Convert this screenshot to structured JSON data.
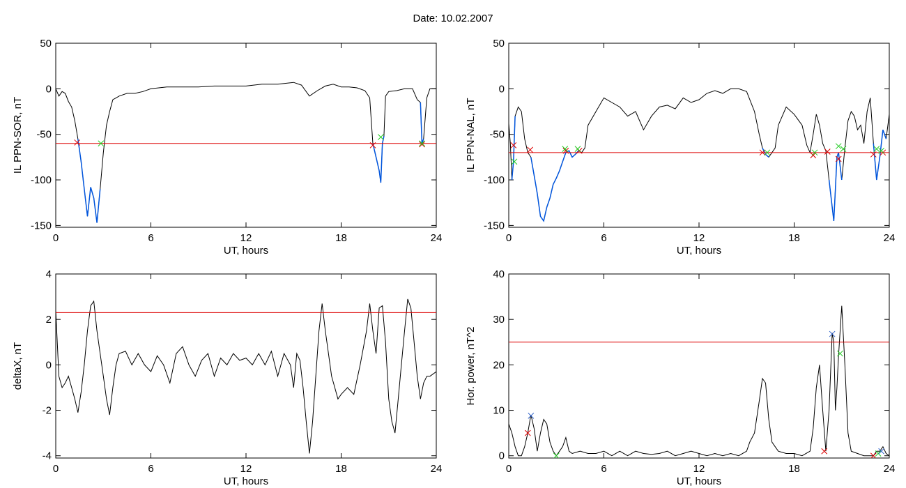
{
  "figure": {
    "title": "Date:  10.02.2007"
  },
  "colors": {
    "trace": "#000000",
    "event": "#0055dd",
    "threshold": "#dd0000",
    "marker_start": "#dd0000",
    "marker_end": "#22cc22",
    "marker_peak": "#3366cc"
  },
  "chart_data": [
    {
      "type": "line",
      "id": "sor",
      "xlabel": "UT, hours",
      "ylabel": "IL PPN-SOR, nT",
      "xlim": [
        0,
        24
      ],
      "ylim": [
        -152,
        50
      ],
      "xticks": [
        0,
        6,
        12,
        18,
        24
      ],
      "yticks": [
        50,
        0,
        -50,
        -100,
        -150
      ],
      "threshold": -60,
      "series": [
        {
          "x": [
            0,
            0.2,
            0.4,
            0.6,
            0.8,
            1.0,
            1.2,
            1.4,
            1.6,
            1.8,
            2.0,
            2.2,
            2.4,
            2.6,
            2.8,
            3.0,
            3.2,
            3.4,
            3.6,
            3.8,
            4.0,
            4.5,
            5.0,
            5.5,
            6.0,
            7.0,
            8.0,
            9.0,
            10.0,
            11.0,
            12.0,
            13.0,
            14.0,
            15.0,
            15.5,
            16.0,
            16.5,
            17.0,
            17.5,
            18.0,
            18.5,
            19.0,
            19.5,
            19.8,
            20.0,
            20.2,
            20.4,
            20.5,
            20.6,
            20.7,
            20.8,
            21.0,
            21.5,
            22.0,
            22.5,
            22.8,
            23.0,
            23.1,
            23.2,
            23.4,
            23.6,
            24.0
          ],
          "y": [
            0,
            -8,
            -3,
            -5,
            -14,
            -20,
            -35,
            -55,
            -80,
            -110,
            -140,
            -108,
            -120,
            -147,
            -110,
            -70,
            -40,
            -25,
            -12,
            -10,
            -8,
            -5,
            -5,
            -3,
            0,
            2,
            2,
            2,
            3,
            3,
            3,
            5,
            5,
            7,
            4,
            -8,
            -2,
            3,
            5,
            2,
            2,
            1,
            -2,
            -10,
            -60,
            -75,
            -90,
            -103,
            -60,
            -52,
            -8,
            -3,
            -2,
            0,
            0,
            -12,
            -15,
            -60,
            -55,
            -10,
            0,
            0
          ]
        }
      ],
      "events": [
        [
          1.3,
          2.9
        ],
        [
          20.0,
          20.7
        ],
        [
          23.0,
          23.2
        ]
      ],
      "markers_start": [
        {
          "x": 1.35,
          "y": -59
        },
        {
          "x": 20.0,
          "y": -62
        },
        {
          "x": 23.1,
          "y": -61
        }
      ],
      "markers_end": [
        {
          "x": 2.85,
          "y": -60
        },
        {
          "x": 20.5,
          "y": -53
        },
        {
          "x": 23.1,
          "y": -60
        }
      ],
      "markers_peak": []
    },
    {
      "type": "line",
      "id": "nal",
      "xlabel": "UT, hours",
      "ylabel": "IL PPN-NAL, nT",
      "xlim": [
        0,
        24
      ],
      "ylim": [
        -152,
        50
      ],
      "xticks": [
        0,
        6,
        12,
        18,
        24
      ],
      "yticks": [
        50,
        0,
        -50,
        -100,
        -150
      ],
      "threshold": -70,
      "series": [
        {
          "x": [
            0,
            0.1,
            0.2,
            0.3,
            0.4,
            0.6,
            0.8,
            1.0,
            1.2,
            1.4,
            1.6,
            1.8,
            2.0,
            2.2,
            2.4,
            2.6,
            2.8,
            3.0,
            3.2,
            3.4,
            3.6,
            3.8,
            4.0,
            4.2,
            4.4,
            4.6,
            4.8,
            5.0,
            5.5,
            6.0,
            6.5,
            7.0,
            7.5,
            8.0,
            8.5,
            9.0,
            9.5,
            10.0,
            10.5,
            11.0,
            11.5,
            12.0,
            12.5,
            13.0,
            13.5,
            14.0,
            14.5,
            15.0,
            15.5,
            15.8,
            16.0,
            16.2,
            16.4,
            16.6,
            16.8,
            17.0,
            17.5,
            18.0,
            18.5,
            18.8,
            19.0,
            19.2,
            19.4,
            19.6,
            19.8,
            20.0,
            20.2,
            20.4,
            20.5,
            20.6,
            20.7,
            20.8,
            21.0,
            21.2,
            21.4,
            21.6,
            21.8,
            22.0,
            22.2,
            22.4,
            22.6,
            22.8,
            23.0,
            23.2,
            23.4,
            23.6,
            23.8,
            24.0
          ],
          "y": [
            -38,
            -60,
            -100,
            -80,
            -30,
            -20,
            -25,
            -55,
            -70,
            -75,
            -95,
            -115,
            -140,
            -145,
            -130,
            -120,
            -105,
            -98,
            -90,
            -80,
            -70,
            -68,
            -75,
            -72,
            -68,
            -70,
            -65,
            -40,
            -25,
            -10,
            -15,
            -20,
            -30,
            -25,
            -45,
            -30,
            -20,
            -18,
            -22,
            -10,
            -15,
            -12,
            -5,
            -2,
            -5,
            0,
            0,
            -3,
            -25,
            -50,
            -65,
            -72,
            -75,
            -70,
            -65,
            -40,
            -20,
            -28,
            -40,
            -62,
            -70,
            -50,
            -28,
            -40,
            -60,
            -68,
            -100,
            -130,
            -145,
            -110,
            -75,
            -70,
            -100,
            -65,
            -35,
            -25,
            -30,
            -45,
            -40,
            -60,
            -25,
            -10,
            -60,
            -100,
            -75,
            -45,
            -55,
            -28
          ]
        }
      ],
      "events": [
        [
          0.2,
          0.4
        ],
        [
          1.3,
          4.5
        ],
        [
          15.9,
          16.4
        ],
        [
          19.1,
          19.3
        ],
        [
          20.1,
          21.0
        ],
        [
          22.9,
          23.9
        ]
      ],
      "markers_start": [
        {
          "x": 0.3,
          "y": -62
        },
        {
          "x": 1.35,
          "y": -67
        },
        {
          "x": 3.6,
          "y": -68
        },
        {
          "x": 4.45,
          "y": -68
        },
        {
          "x": 16.0,
          "y": -70
        },
        {
          "x": 19.2,
          "y": -73
        },
        {
          "x": 20.1,
          "y": -69
        },
        {
          "x": 20.8,
          "y": -77
        },
        {
          "x": 23.0,
          "y": -72
        },
        {
          "x": 23.6,
          "y": -70
        }
      ],
      "markers_end": [
        {
          "x": 0.35,
          "y": -80
        },
        {
          "x": 3.55,
          "y": -66
        },
        {
          "x": 4.35,
          "y": -66
        },
        {
          "x": 16.3,
          "y": -70
        },
        {
          "x": 19.3,
          "y": -70
        },
        {
          "x": 20.8,
          "y": -63
        },
        {
          "x": 21.1,
          "y": -66
        },
        {
          "x": 23.2,
          "y": -66
        },
        {
          "x": 23.5,
          "y": -68
        }
      ],
      "markers_peak": []
    },
    {
      "type": "line",
      "id": "deltax",
      "xlabel": "UT, hours",
      "ylabel": "deltaX, nT",
      "xlim": [
        0,
        24
      ],
      "ylim": [
        -4.1,
        4
      ],
      "xticks": [
        0,
        6,
        12,
        18,
        24
      ],
      "yticks": [
        4,
        2,
        0,
        -2,
        -4
      ],
      "threshold": 2.3,
      "series": [
        {
          "x": [
            0,
            0.2,
            0.4,
            0.6,
            0.8,
            1.0,
            1.2,
            1.4,
            1.6,
            1.8,
            2.0,
            2.2,
            2.4,
            2.6,
            2.8,
            3.0,
            3.2,
            3.4,
            3.6,
            3.8,
            4.0,
            4.4,
            4.8,
            5.2,
            5.6,
            6.0,
            6.4,
            6.8,
            7.2,
            7.6,
            8.0,
            8.4,
            8.8,
            9.2,
            9.6,
            10.0,
            10.4,
            10.8,
            11.2,
            11.6,
            12.0,
            12.4,
            12.8,
            13.2,
            13.6,
            14.0,
            14.4,
            14.8,
            15.0,
            15.2,
            15.4,
            15.6,
            15.8,
            16.0,
            16.2,
            16.4,
            16.6,
            16.8,
            17.0,
            17.2,
            17.4,
            17.6,
            17.8,
            18.0,
            18.4,
            18.8,
            19.2,
            19.6,
            19.8,
            20.0,
            20.2,
            20.4,
            20.6,
            20.8,
            21.0,
            21.2,
            21.4,
            21.6,
            21.8,
            22.0,
            22.2,
            22.4,
            22.6,
            22.8,
            23.0,
            23.2,
            23.4,
            23.6,
            24.0
          ],
          "y": [
            2.4,
            -0.5,
            -1.0,
            -0.8,
            -0.5,
            -1.0,
            -1.5,
            -2.1,
            -1.2,
            0.0,
            1.5,
            2.6,
            2.8,
            1.5,
            0.5,
            -0.5,
            -1.5,
            -2.2,
            -1.0,
            0.0,
            0.5,
            0.6,
            0.0,
            0.5,
            0.0,
            -0.3,
            0.4,
            0.0,
            -0.8,
            0.5,
            0.8,
            0.0,
            -0.5,
            0.2,
            0.5,
            -0.5,
            0.3,
            0.0,
            0.5,
            0.2,
            0.3,
            0.0,
            0.5,
            0.0,
            0.6,
            -0.5,
            0.5,
            0.0,
            -1.0,
            0.5,
            0.2,
            -1.0,
            -2.5,
            -3.9,
            -2.5,
            -0.5,
            1.5,
            2.7,
            1.5,
            0.5,
            -0.5,
            -1.0,
            -1.5,
            -1.3,
            -1.0,
            -1.3,
            0.0,
            1.5,
            2.7,
            1.5,
            0.5,
            2.5,
            2.6,
            1.0,
            -1.5,
            -2.5,
            -3.0,
            -1.5,
            0.0,
            1.5,
            2.9,
            2.5,
            1.0,
            -0.5,
            -1.5,
            -0.8,
            -0.5,
            -0.5,
            -0.3
          ]
        }
      ],
      "events": [],
      "markers_start": [],
      "markers_end": [],
      "markers_peak": []
    },
    {
      "type": "line",
      "id": "power",
      "xlabel": "UT, hours",
      "ylabel": "Hor. power, nT^2",
      "xlim": [
        0,
        24
      ],
      "ylim": [
        -0.5,
        40
      ],
      "xticks": [
        0,
        6,
        12,
        18,
        24
      ],
      "yticks": [
        40,
        30,
        20,
        10,
        0
      ],
      "threshold": 25,
      "series": [
        {
          "x": [
            0,
            0.2,
            0.4,
            0.6,
            0.8,
            1.0,
            1.2,
            1.4,
            1.6,
            1.8,
            2.0,
            2.2,
            2.4,
            2.6,
            2.8,
            3.0,
            3.2,
            3.4,
            3.6,
            3.8,
            4.0,
            4.5,
            5.0,
            5.5,
            6.0,
            6.5,
            7.0,
            7.5,
            8.0,
            8.5,
            9.0,
            9.5,
            10.0,
            10.5,
            11.0,
            11.5,
            12.0,
            12.5,
            13.0,
            13.5,
            14.0,
            14.5,
            15.0,
            15.2,
            15.5,
            15.8,
            16.0,
            16.2,
            16.4,
            16.6,
            16.8,
            17.0,
            17.5,
            18.0,
            18.5,
            19.0,
            19.2,
            19.4,
            19.6,
            19.8,
            20.0,
            20.2,
            20.4,
            20.5,
            20.6,
            20.7,
            20.8,
            21.0,
            21.2,
            21.4,
            21.6,
            22.0,
            22.4,
            22.8,
            23.0,
            23.2,
            23.4,
            23.6,
            23.8,
            24.0
          ],
          "y": [
            7,
            5,
            2,
            0,
            0,
            2,
            5,
            9,
            6,
            1,
            5,
            8,
            7,
            3,
            1,
            0,
            1,
            2,
            4,
            1,
            0.5,
            1,
            0.5,
            0.5,
            1,
            0,
            1,
            0,
            1,
            0.5,
            0.3,
            0.5,
            1,
            0,
            0.5,
            1,
            0.5,
            0,
            0.5,
            0,
            0.5,
            0,
            1,
            3,
            5,
            12,
            17,
            16,
            8,
            3,
            2,
            1,
            0.5,
            0.5,
            0,
            1,
            6,
            15,
            20,
            10,
            1,
            10,
            27,
            25,
            10,
            15,
            22,
            33,
            20,
            5,
            1,
            0.5,
            0,
            0,
            0,
            1,
            1,
            2,
            0.5,
            0
          ]
        }
      ],
      "events": [],
      "markers_start": [
        {
          "x": 1.2,
          "y": 5
        },
        {
          "x": 19.9,
          "y": 1
        },
        {
          "x": 23.0,
          "y": 0
        }
      ],
      "markers_end": [
        {
          "x": 3.0,
          "y": 0
        },
        {
          "x": 20.9,
          "y": 22.5
        },
        {
          "x": 23.3,
          "y": 0.5
        }
      ],
      "markers_peak": [
        {
          "x": 1.4,
          "y": 8.8
        },
        {
          "x": 20.4,
          "y": 26.8
        },
        {
          "x": 23.5,
          "y": 1
        }
      ]
    }
  ]
}
